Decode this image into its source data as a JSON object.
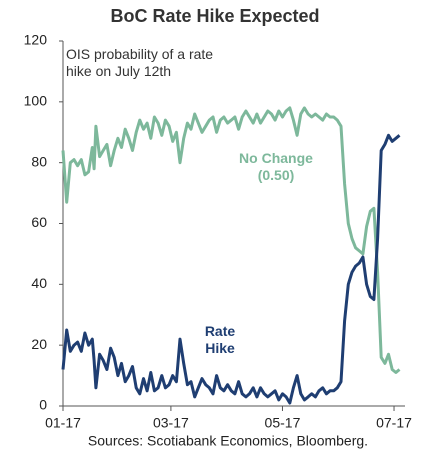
{
  "chart_data": {
    "type": "line",
    "title": "BoC Rate Hike Expected",
    "annotation": "OIS probability of a rate hike on July 12th",
    "source": "Sources: Scotiabank Economics, Bloomberg.",
    "x": [
      0,
      2,
      4,
      6,
      8,
      10,
      12,
      14,
      16,
      17,
      18,
      20,
      22,
      24,
      26,
      28,
      30,
      32,
      34,
      36,
      38,
      40,
      42,
      44,
      46,
      48,
      50,
      52,
      54,
      56,
      58,
      60,
      62,
      64,
      66,
      68,
      70,
      72,
      74,
      76,
      78,
      80,
      82,
      84,
      86,
      88,
      90,
      92,
      94,
      96,
      98,
      100,
      102,
      104,
      106,
      108,
      110,
      112,
      114,
      116,
      118,
      120,
      122,
      124,
      126,
      128,
      130,
      132,
      134,
      136,
      138,
      140,
      142,
      144,
      146,
      148,
      150,
      152,
      154,
      156,
      158,
      160,
      162,
      164,
      166,
      168,
      170,
      172,
      174,
      176,
      178,
      180,
      182,
      184
    ],
    "series": [
      {
        "name": "No Change (0.50)",
        "color": "#7db89b",
        "values": [
          84,
          67,
          80,
          81,
          79,
          81,
          76,
          77,
          85,
          78,
          92,
          82,
          84,
          86,
          79,
          84,
          88,
          85,
          91,
          88,
          84,
          90,
          94,
          91,
          93,
          88,
          95,
          93,
          89,
          94,
          92,
          87,
          90,
          80,
          88,
          93,
          91,
          96,
          93,
          90,
          92,
          94,
          95,
          90,
          94,
          95,
          93,
          94,
          95,
          91,
          95,
          97,
          95,
          93,
          96,
          93,
          95,
          97,
          96,
          94,
          97,
          95,
          97,
          98,
          94,
          89,
          96,
          98,
          96,
          95,
          96,
          95,
          94,
          96,
          95,
          95,
          94,
          92,
          73,
          60,
          55,
          52,
          51,
          50,
          59,
          64,
          65,
          44,
          16,
          14,
          17,
          12,
          11,
          12
        ]
      },
      {
        "name": "Rate Hike",
        "color": "#1f3e72",
        "values": [
          12,
          25,
          18,
          20,
          21,
          18,
          24,
          20,
          22,
          15,
          6,
          17,
          15,
          12,
          19,
          16,
          10,
          14,
          8,
          10,
          13,
          6,
          4,
          9,
          5,
          11,
          5,
          6,
          10,
          6,
          7,
          10,
          8,
          22,
          14,
          7,
          8,
          3,
          6,
          9,
          7,
          6,
          4,
          10,
          6,
          5,
          7,
          5,
          4,
          8,
          4,
          3,
          4,
          6,
          3,
          6,
          4,
          3,
          4,
          5,
          2,
          4,
          3,
          1,
          6,
          10,
          4,
          2,
          3,
          4,
          3,
          5,
          6,
          4,
          5,
          5,
          6,
          8,
          28,
          40,
          44,
          46,
          47,
          49,
          40,
          36,
          35,
          55,
          84,
          86,
          89,
          87,
          88,
          89
        ]
      }
    ],
    "xlim": [
      0,
      187
    ],
    "xticks": [
      {
        "value": 0,
        "label": "01-17"
      },
      {
        "value": 59,
        "label": "03-17"
      },
      {
        "value": 120,
        "label": "05-17"
      },
      {
        "value": 181,
        "label": "07-17"
      }
    ],
    "ylim": [
      0,
      120
    ],
    "yticks": [
      0,
      20,
      40,
      60,
      80,
      100,
      120
    ]
  }
}
